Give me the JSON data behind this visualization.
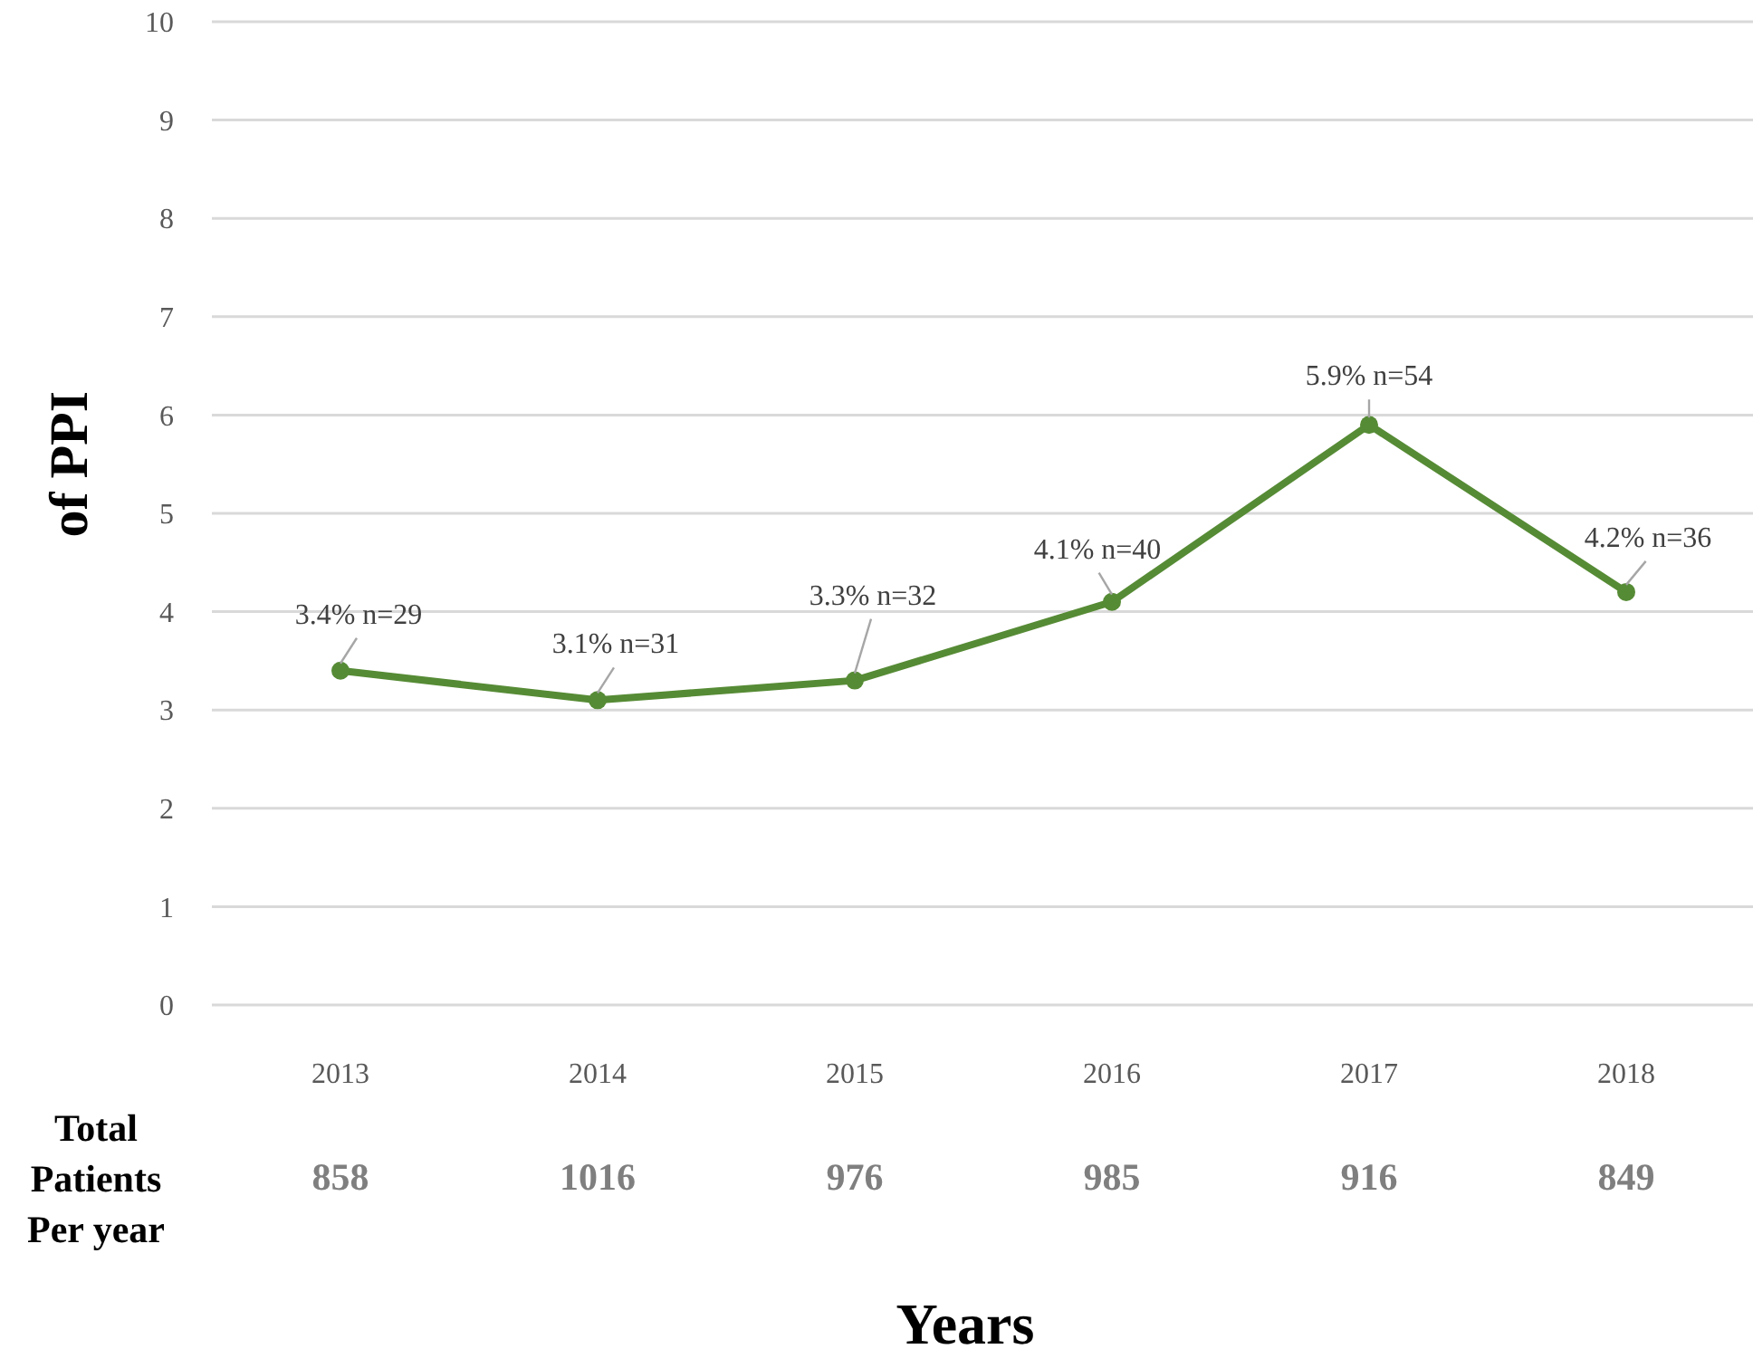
{
  "chart_data": {
    "type": "line",
    "xlabel": "Years",
    "ylabel": "of PPI",
    "categories": [
      "2013",
      "2014",
      "2015",
      "2016",
      "2017",
      "2018"
    ],
    "series": [
      {
        "color": "#568b35",
        "values": [
          3.4,
          3.1,
          3.3,
          4.1,
          5.9,
          4.2
        ],
        "value_labels": [
          "3.4% n=29",
          "3.1% n=31",
          "3.3% n=32",
          "4.1% n=40",
          "5.9% n=54",
          "4.2% n=36"
        ]
      }
    ],
    "ylim": [
      0,
      10
    ],
    "yticks": [
      0,
      1,
      2,
      3,
      4,
      5,
      6,
      7,
      8,
      9,
      10
    ],
    "grid": "y",
    "marker": "circle",
    "line_style": "solid",
    "annotations": [
      "Total Patients Per year",
      "858",
      "1016",
      "976",
      "985",
      "916",
      "849"
    ]
  }
}
